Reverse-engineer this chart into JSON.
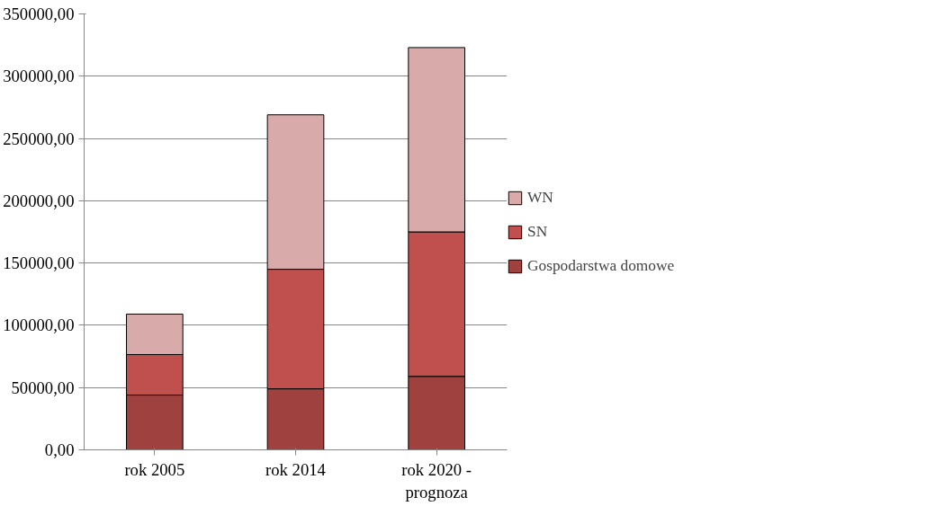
{
  "chart_data": {
    "type": "bar",
    "stacked": true,
    "categories": [
      "rok 2005",
      "rok 2014",
      "rok 2020 - prognoza"
    ],
    "series": [
      {
        "name": "Gospodarstwa domowe",
        "color": "#9e413f",
        "values": [
          44000,
          49000,
          59000
        ]
      },
      {
        "name": "SN",
        "color": "#c0504d",
        "values": [
          32500,
          96000,
          116000
        ]
      },
      {
        "name": "WN",
        "color": "#d9aaaa",
        "values": [
          32500,
          124000,
          148000
        ]
      }
    ],
    "ylim": [
      0,
      350000
    ],
    "yticks": [
      {
        "value": 0,
        "label": "0,00"
      },
      {
        "value": 50000,
        "label": "50000,00"
      },
      {
        "value": 100000,
        "label": "100000,00"
      },
      {
        "value": 150000,
        "label": "150000,00"
      },
      {
        "value": 200000,
        "label": "200000,00"
      },
      {
        "value": 250000,
        "label": "250000,00"
      },
      {
        "value": 300000,
        "label": "300000,00"
      },
      {
        "value": 350000,
        "label": "350000,00"
      }
    ],
    "grid": "y",
    "legend": "right"
  }
}
